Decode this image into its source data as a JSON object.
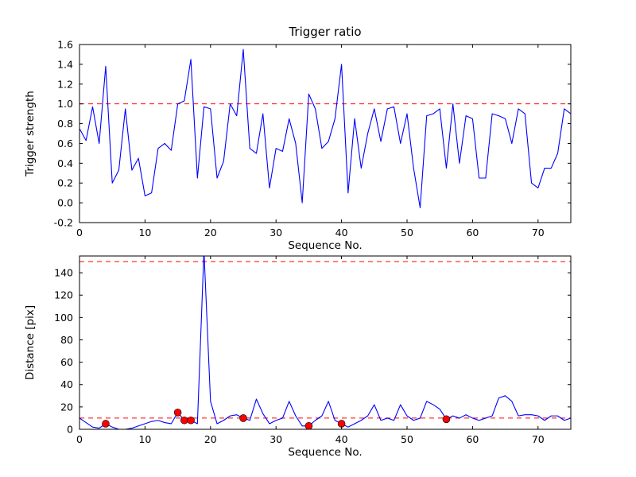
{
  "figure": {
    "background": "#ffffff",
    "line_color": "#0000ff",
    "threshold_color": "#ff0000",
    "marker_color": "#ff0000",
    "marker_edge_color": "#000000",
    "axis_color": "#000000",
    "title": "Trigger ratio"
  },
  "chart_data": [
    {
      "type": "line",
      "title": "Trigger ratio",
      "xlabel": "Sequence No.",
      "ylabel": "Trigger strength",
      "xlim": [
        0,
        75
      ],
      "ylim": [
        -0.2,
        1.6
      ],
      "grid": false,
      "legend": null,
      "xticks": [
        0,
        10,
        20,
        30,
        40,
        50,
        60,
        70
      ],
      "xticklabels": [
        "0",
        "10",
        "20",
        "30",
        "40",
        "50",
        "60",
        "70"
      ],
      "yticks": [
        -0.2,
        0.0,
        0.2,
        0.4,
        0.6,
        0.8,
        1.0,
        1.2,
        1.4,
        1.6
      ],
      "yticklabels": [
        "-0.2",
        "0.0",
        "0.2",
        "0.4",
        "0.6",
        "0.8",
        "1.0",
        "1.2",
        "1.4",
        "1.6"
      ],
      "hlines": [
        1.0
      ],
      "x": [
        0,
        1,
        2,
        3,
        4,
        5,
        6,
        7,
        8,
        9,
        10,
        11,
        12,
        13,
        14,
        15,
        16,
        17,
        18,
        19,
        20,
        21,
        22,
        23,
        24,
        25,
        26,
        27,
        28,
        29,
        30,
        31,
        32,
        33,
        34,
        35,
        36,
        37,
        38,
        39,
        40,
        41,
        42,
        43,
        44,
        45,
        46,
        47,
        48,
        49,
        50,
        51,
        52,
        53,
        54,
        55,
        56,
        57,
        58,
        59,
        60,
        61,
        62,
        63,
        64,
        65,
        66,
        67,
        68,
        69,
        70,
        71,
        72,
        73,
        74,
        75
      ],
      "values": [
        0.75,
        0.63,
        0.97,
        0.6,
        1.38,
        0.2,
        0.33,
        0.95,
        0.33,
        0.45,
        0.07,
        0.1,
        0.55,
        0.6,
        0.53,
        1.0,
        1.03,
        1.45,
        0.25,
        0.97,
        0.95,
        0.25,
        0.42,
        1.0,
        0.88,
        1.55,
        0.55,
        0.5,
        0.9,
        0.15,
        0.55,
        0.52,
        0.85,
        0.6,
        0.0,
        1.1,
        0.95,
        0.55,
        0.62,
        0.85,
        1.4,
        0.1,
        0.85,
        0.35,
        0.7,
        0.95,
        0.62,
        0.95,
        0.97,
        0.6,
        0.9,
        0.35,
        -0.05,
        0.88,
        0.9,
        0.95,
        0.35,
        1.0,
        0.4,
        0.88,
        0.85,
        0.25,
        0.25,
        0.9,
        0.88,
        0.85,
        0.6,
        0.95,
        0.9,
        0.2,
        0.15,
        0.35,
        0.35,
        0.5,
        0.95,
        0.9
      ]
    },
    {
      "type": "line",
      "title": "",
      "xlabel": "Sequence No.",
      "ylabel": "Distance [pix]",
      "xlim": [
        0,
        75
      ],
      "ylim": [
        0,
        155
      ],
      "grid": false,
      "legend": null,
      "xticks": [
        0,
        10,
        20,
        30,
        40,
        50,
        60,
        70
      ],
      "xticklabels": [
        "0",
        "10",
        "20",
        "30",
        "40",
        "50",
        "60",
        "70"
      ],
      "yticks": [
        0,
        20,
        40,
        60,
        80,
        100,
        120,
        140
      ],
      "yticklabels": [
        "0",
        "20",
        "40",
        "60",
        "80",
        "100",
        "120",
        "140"
      ],
      "hlines": [
        150,
        10
      ],
      "x": [
        0,
        1,
        2,
        3,
        4,
        5,
        6,
        7,
        8,
        9,
        10,
        11,
        12,
        13,
        14,
        15,
        16,
        17,
        18,
        19,
        20,
        21,
        22,
        23,
        24,
        25,
        26,
        27,
        28,
        29,
        30,
        31,
        32,
        33,
        34,
        35,
        36,
        37,
        38,
        39,
        40,
        41,
        42,
        43,
        44,
        45,
        46,
        47,
        48,
        49,
        50,
        51,
        52,
        53,
        54,
        55,
        56,
        57,
        58,
        59,
        60,
        61,
        62,
        63,
        64,
        65,
        66,
        67,
        68,
        69,
        70,
        71,
        72,
        73,
        74,
        75
      ],
      "values": [
        10,
        6,
        2,
        1,
        5,
        2,
        0,
        0,
        1,
        3,
        5,
        7,
        8,
        6,
        5,
        15,
        8,
        8,
        5,
        160,
        25,
        5,
        8,
        12,
        13,
        10,
        8,
        27,
        14,
        5,
        8,
        10,
        25,
        12,
        3,
        3,
        8,
        12,
        25,
        8,
        5,
        2,
        5,
        8,
        12,
        22,
        8,
        10,
        8,
        22,
        12,
        8,
        10,
        25,
        22,
        18,
        9,
        12,
        10,
        13,
        10,
        8,
        10,
        12,
        28,
        30,
        25,
        12,
        13,
        13,
        12,
        8,
        12,
        12,
        8,
        10
      ],
      "scatter": {
        "x": [
          4,
          15,
          16,
          17,
          25,
          35,
          40,
          56
        ],
        "y": [
          5,
          15,
          8,
          8,
          10,
          3,
          5,
          9
        ]
      }
    }
  ]
}
